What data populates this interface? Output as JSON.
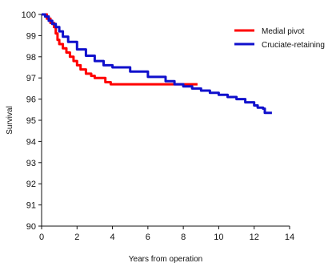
{
  "chart_data": {
    "type": "line",
    "title": "",
    "xlabel": "Years from operation",
    "ylabel": "Survival",
    "xlim": [
      0,
      14
    ],
    "ylim": [
      90,
      100
    ],
    "xticks": [
      "0",
      "2",
      "4",
      "6",
      "8",
      "10",
      "12",
      "14"
    ],
    "yticks": [
      "90",
      "91",
      "92",
      "93",
      "94",
      "95",
      "96",
      "97",
      "98",
      "99",
      "100"
    ],
    "grid": false,
    "legend_position": "top-right",
    "series": [
      {
        "name": "Medial pivot",
        "color": "#ff0000",
        "step": true,
        "points": [
          [
            0,
            100
          ],
          [
            0.3,
            99.8
          ],
          [
            0.5,
            99.6
          ],
          [
            0.7,
            99.4
          ],
          [
            0.8,
            99.1
          ],
          [
            0.9,
            98.8
          ],
          [
            1.0,
            98.6
          ],
          [
            1.2,
            98.4
          ],
          [
            1.4,
            98.2
          ],
          [
            1.6,
            98.0
          ],
          [
            1.8,
            97.8
          ],
          [
            2.0,
            97.6
          ],
          [
            2.2,
            97.4
          ],
          [
            2.5,
            97.2
          ],
          [
            2.8,
            97.1
          ],
          [
            3.0,
            97.0
          ],
          [
            3.5,
            97.0
          ],
          [
            3.6,
            96.8
          ],
          [
            3.8,
            96.8
          ],
          [
            3.9,
            96.7
          ],
          [
            5.0,
            96.7
          ],
          [
            6.0,
            96.7
          ],
          [
            7.0,
            96.7
          ],
          [
            8.0,
            96.7
          ],
          [
            8.8,
            96.7
          ]
        ]
      },
      {
        "name": "Cruciate-retaining",
        "color": "#1010cc",
        "step": true,
        "points": [
          [
            0,
            100
          ],
          [
            0.2,
            99.9
          ],
          [
            0.4,
            99.7
          ],
          [
            0.6,
            99.55
          ],
          [
            0.8,
            99.4
          ],
          [
            1.0,
            99.2
          ],
          [
            1.2,
            98.95
          ],
          [
            1.5,
            98.7
          ],
          [
            2.0,
            98.35
          ],
          [
            2.5,
            98.05
          ],
          [
            3.0,
            97.8
          ],
          [
            3.5,
            97.6
          ],
          [
            4.0,
            97.5
          ],
          [
            5.0,
            97.3
          ],
          [
            6.0,
            97.05
          ],
          [
            7.0,
            96.85
          ],
          [
            7.5,
            96.7
          ],
          [
            8.0,
            96.6
          ],
          [
            8.5,
            96.5
          ],
          [
            9.0,
            96.4
          ],
          [
            9.5,
            96.3
          ],
          [
            10.0,
            96.2
          ],
          [
            10.5,
            96.1
          ],
          [
            11.0,
            96.0
          ],
          [
            11.5,
            95.85
          ],
          [
            12.0,
            95.7
          ],
          [
            12.2,
            95.6
          ],
          [
            12.5,
            95.55
          ],
          [
            12.6,
            95.35
          ],
          [
            13.0,
            95.35
          ]
        ]
      }
    ]
  }
}
